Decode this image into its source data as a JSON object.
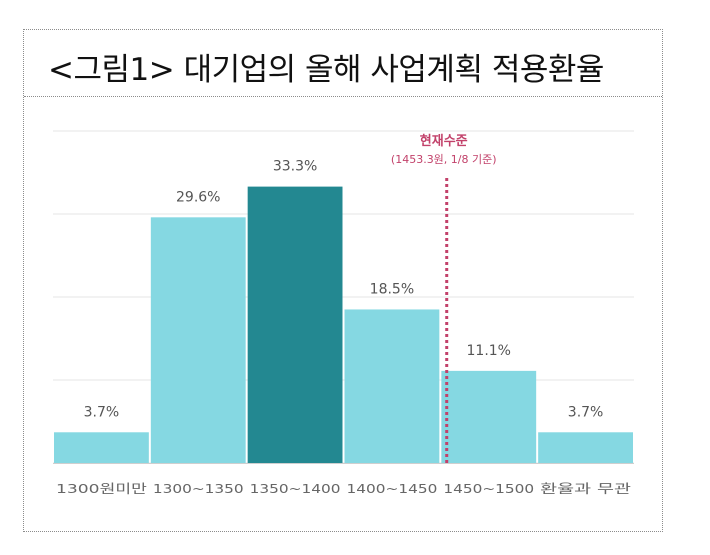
{
  "figure": {
    "title": "<그림1> 대기업의 올해 사업계획 적용환율"
  },
  "chart_data": {
    "type": "bar",
    "categories": [
      "1300원미만",
      "1300~1350",
      "1350~1400",
      "1400~1450",
      "1450~1500",
      "환율과 무관"
    ],
    "values": [
      3.7,
      29.6,
      33.3,
      18.5,
      11.1,
      3.7
    ],
    "value_labels": [
      "3.7%",
      "29.6%",
      "33.3%",
      "18.5%",
      "11.1%",
      "3.7%"
    ],
    "ylim": [
      0,
      40
    ],
    "grid": true,
    "highlight_index": 2,
    "colors": {
      "bar": "#85d8e2",
      "highlight": "#238891",
      "reference": "#c2416a",
      "grid": "#e6e6e6",
      "label": "#555555"
    },
    "reference_line": {
      "x": 1453.3,
      "label": "현재수준",
      "sublabel": "(1453.3원, 1/8 기준)"
    }
  }
}
